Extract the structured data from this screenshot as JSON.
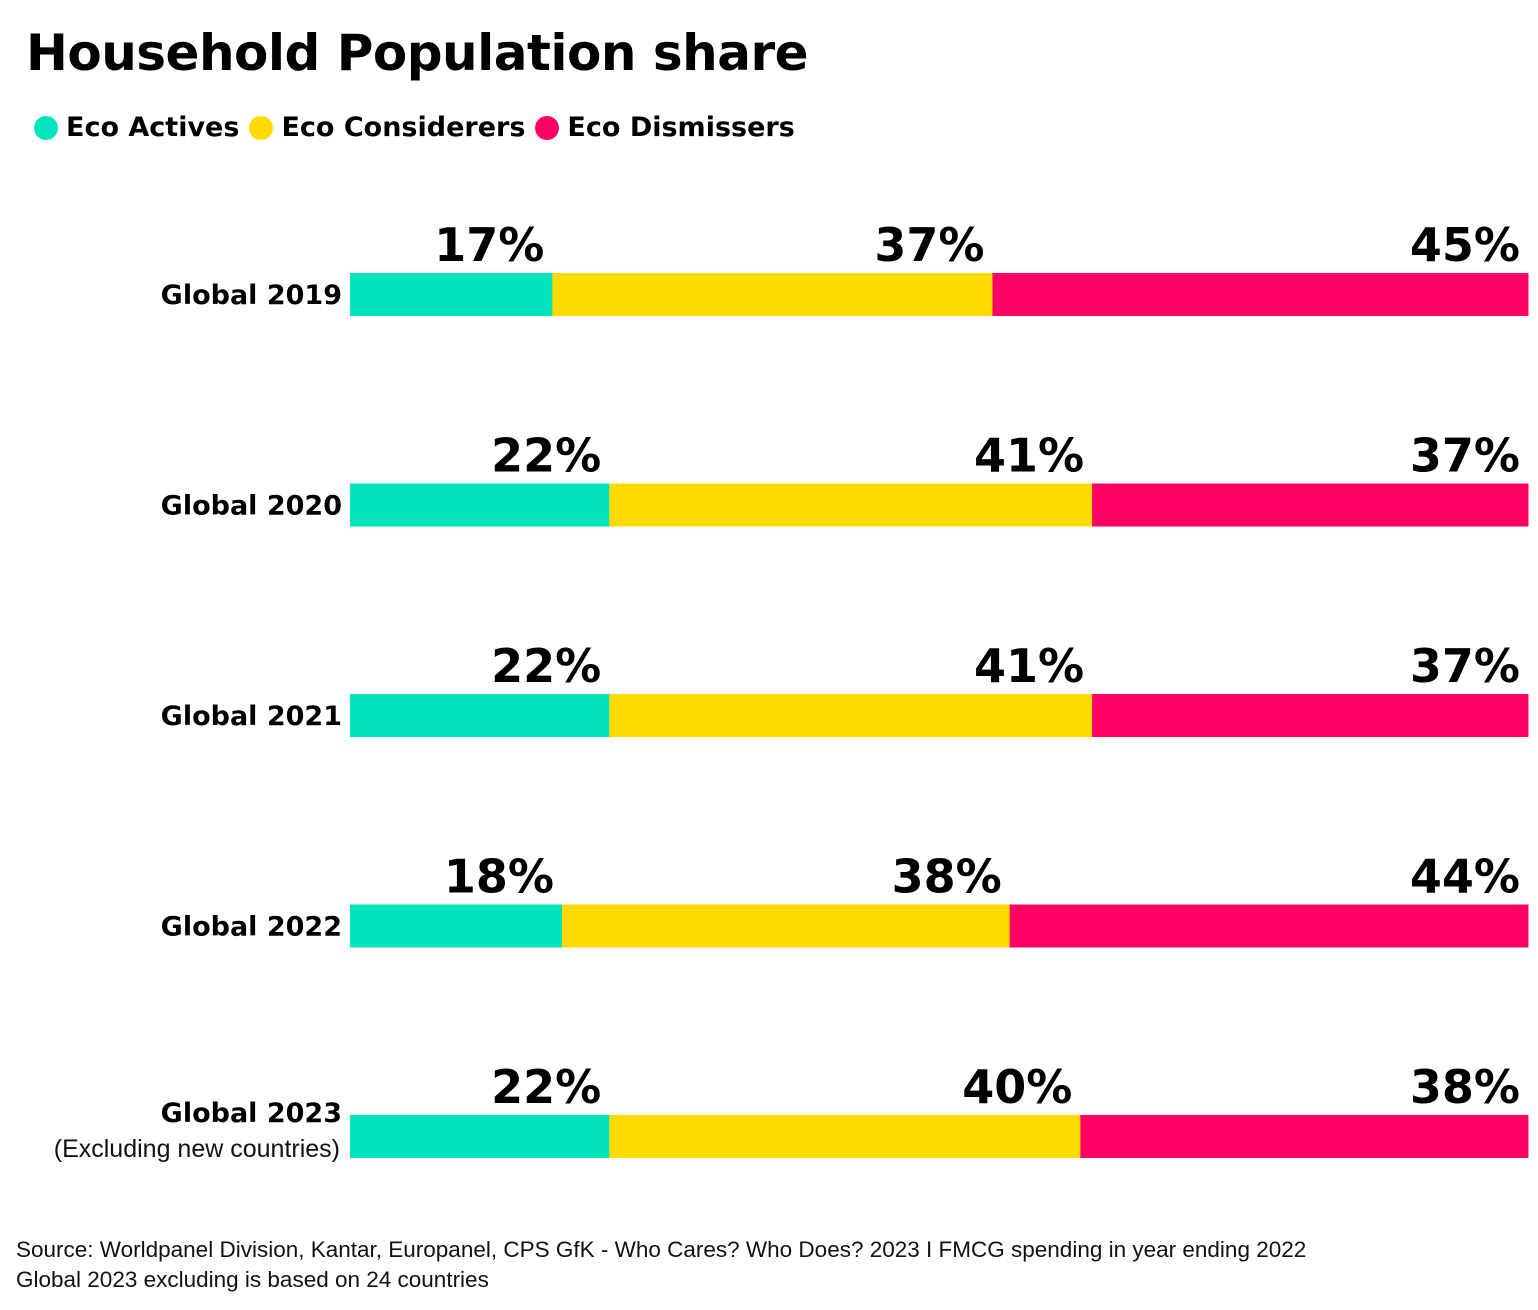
{
  "chart_data": {
    "type": "bar",
    "orientation": "horizontal",
    "stacked": true,
    "title": "Household Population share",
    "categories": [
      "Global 2019",
      "Global 2020",
      "Global 2021",
      "Global 2022",
      "Global 2023"
    ],
    "category_sublabels": [
      "",
      "",
      "",
      "",
      "(Excluding new countries)"
    ],
    "series": [
      {
        "name": "Eco Actives",
        "color": "#00E3BB",
        "values": [
          17,
          22,
          22,
          18,
          22
        ],
        "labels": [
          "17%",
          "22%",
          "22%",
          "18%",
          "22%"
        ]
      },
      {
        "name": "Eco Considerers",
        "color": "#FFDA00",
        "values": [
          37,
          41,
          41,
          38,
          40
        ],
        "labels": [
          "37%",
          "41%",
          "41%",
          "38%",
          "40%"
        ]
      },
      {
        "name": "Eco Dismissers",
        "color": "#FF0064",
        "values": [
          45,
          37,
          37,
          44,
          38
        ],
        "labels": [
          "45%",
          "37%",
          "37%",
          "44%",
          "38%"
        ]
      }
    ],
    "grid": false,
    "legend_position": "top-left"
  },
  "source_note": {
    "line1": "Source: Worldpanel Division, Kantar, Europanel, CPS GfK - Who Cares? Who Does? 2023 I FMCG spending in year ending 2022",
    "line2": "Global 2023 excluding is based on 24 countries"
  }
}
